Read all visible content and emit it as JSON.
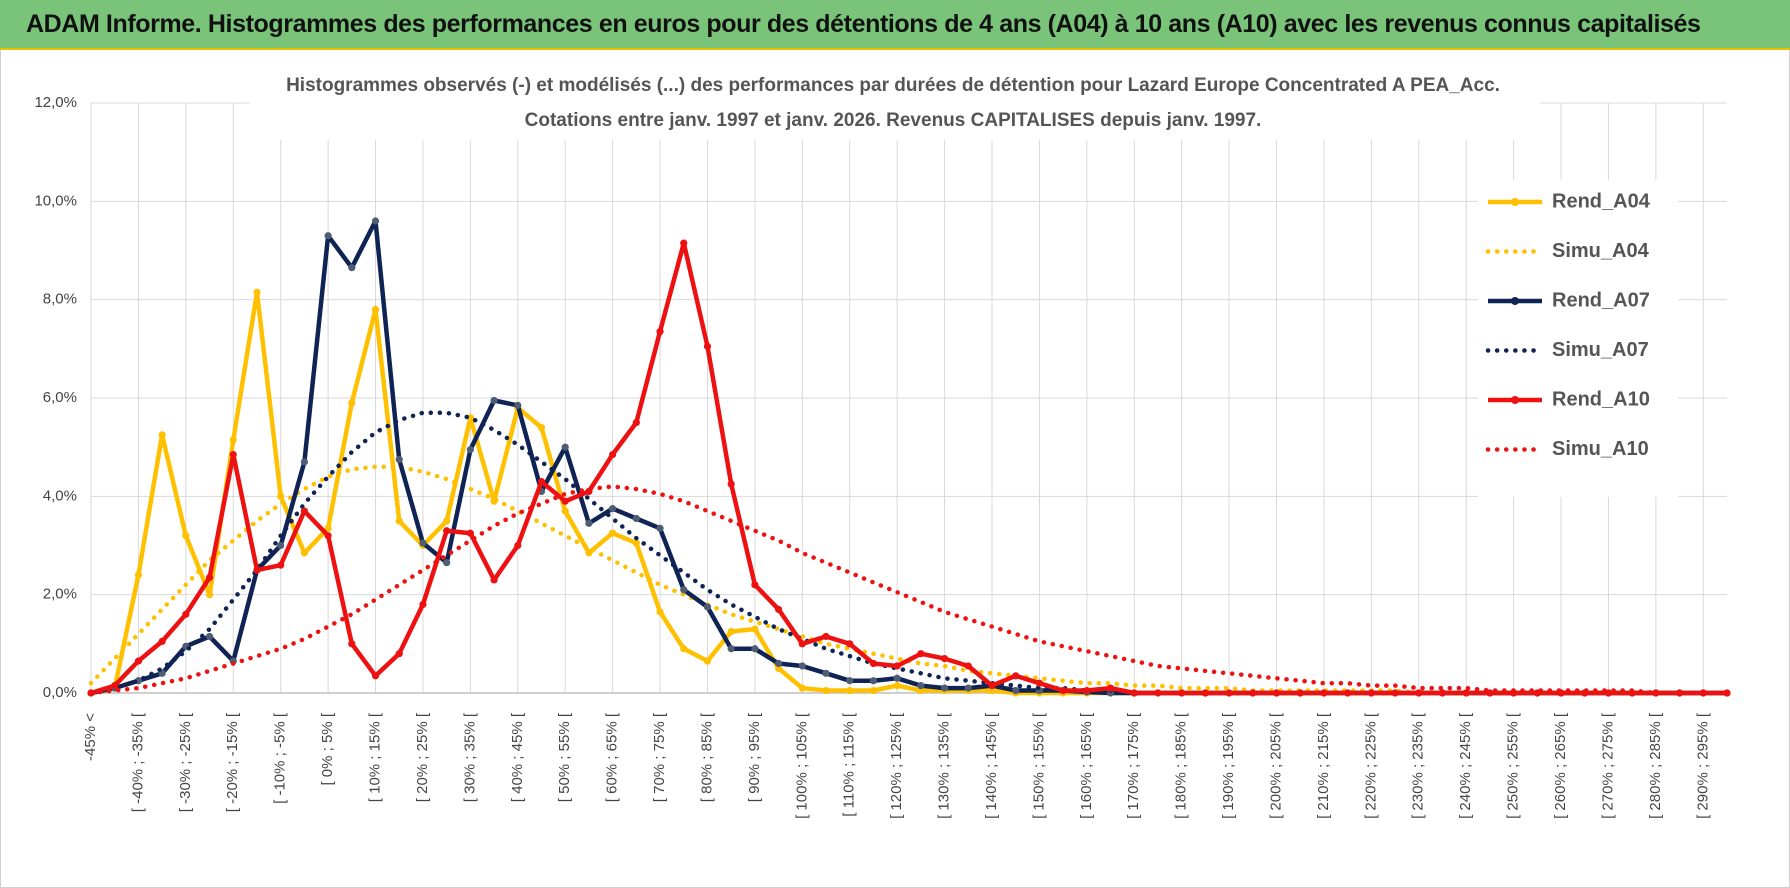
{
  "header": {
    "title": "ADAM Informe. Histogrammes des performances en euros pour des détentions de 4 ans (A04) à 10 ans (A10) avec les revenus connus capitalisés"
  },
  "chart_data": {
    "type": "line",
    "title": "Histogrammes observés (-) et modélisés (...) des performances par durées de détention pour Lazard Europe Concentrated A PEA_Acc.",
    "subtitle": "Cotations entre janv. 1997 et janv. 2026. Revenus CAPITALISES depuis janv. 1997.",
    "categories": [
      "-45% <",
      null,
      "[ -40% ; -35% [",
      null,
      "[ -30% ; -25% [",
      null,
      "[ -20% ; -15% [",
      null,
      "[ -10% ; -5% [",
      null,
      "[ 0% ; 5% [",
      null,
      "[ 10% ; 15% [",
      null,
      "[ 20% ; 25% [",
      null,
      "[ 30% ; 35% [",
      null,
      "[ 40% ; 45% [",
      null,
      "[ 50% ; 55% [",
      null,
      "[ 60% ; 65% [",
      null,
      "[ 70% ; 75% [",
      null,
      "[ 80% ; 85% [",
      null,
      "[ 90% ; 95% [",
      null,
      "[ 100% ; 105% [",
      null,
      "[ 110% ; 115% [",
      null,
      "[ 120% ; 125% [",
      null,
      "[ 130% ; 135% [",
      null,
      "[ 140% ; 145% [",
      null,
      "[ 150% ; 155% [",
      null,
      "[ 160% ; 165% [",
      null,
      "[ 170% ; 175% [",
      null,
      "[ 180% ; 185% [",
      null,
      "[ 190% ; 195% [",
      null,
      "[ 200% ; 205% [",
      null,
      "[ 210% ; 215% [",
      null,
      "[ 220% ; 225% [",
      null,
      "[ 230% ; 235% [",
      null,
      "[ 240% ; 245% [",
      null,
      "[ 250% ; 255% [",
      null,
      "[ 260% ; 265% [",
      null,
      "[ 270% ; 275% [",
      null,
      "[ 280% ; 285% [",
      null,
      "[ 290% ; 295% [",
      null
    ],
    "ylim": [
      0,
      12
    ],
    "yticks": [
      {
        "value": 0,
        "label": "0,0%"
      },
      {
        "value": 2,
        "label": "2,0%"
      },
      {
        "value": 4,
        "label": "4,0%"
      },
      {
        "value": 6,
        "label": "6,0%"
      },
      {
        "value": 8,
        "label": "8,0%"
      },
      {
        "value": 10,
        "label": "10,0%"
      },
      {
        "value": 12,
        "label": "12,0%"
      }
    ],
    "grid": true,
    "legend": "right",
    "series": [
      {
        "name": "Rend_A04",
        "color": "#ffc000",
        "line_style": "solid",
        "markers": true,
        "values": [
          0,
          0.1,
          2.4,
          5.25,
          3.2,
          2.0,
          5.15,
          8.15,
          4.0,
          2.85,
          3.35,
          5.9,
          7.8,
          3.5,
          3.0,
          3.5,
          5.6,
          3.9,
          5.8,
          5.4,
          3.7,
          2.85,
          3.25,
          3.05,
          1.65,
          0.9,
          0.65,
          1.25,
          1.3,
          0.5,
          0.1,
          0.05,
          0.05,
          0.05,
          0.15,
          0.05,
          0.05,
          0.05,
          0.05,
          0,
          0,
          0,
          0,
          0,
          0,
          0,
          0,
          0,
          0,
          0,
          0,
          0,
          0,
          0,
          0,
          0,
          0,
          0,
          0,
          0,
          0,
          0,
          0,
          0,
          0,
          0,
          0,
          0,
          0,
          0
        ]
      },
      {
        "name": "Simu_A04",
        "color": "#ffc000",
        "line_style": "dotted",
        "markers": false,
        "values": [
          0.2,
          0.7,
          1.2,
          1.7,
          2.2,
          2.7,
          3.1,
          3.5,
          3.85,
          4.15,
          4.4,
          4.55,
          4.6,
          4.6,
          4.5,
          4.35,
          4.15,
          3.95,
          3.7,
          3.45,
          3.2,
          2.95,
          2.7,
          2.45,
          2.2,
          2.0,
          1.8,
          1.6,
          1.45,
          1.3,
          1.15,
          1.0,
          0.9,
          0.8,
          0.7,
          0.6,
          0.55,
          0.45,
          0.4,
          0.35,
          0.3,
          0.25,
          0.2,
          0.2,
          0.15,
          0.15,
          0.1,
          0.1,
          0.1,
          0.05,
          0.05,
          0.05,
          0.05,
          0.05,
          0.05,
          0.05,
          0,
          0,
          0,
          0,
          0,
          0,
          0,
          0,
          0,
          0,
          0,
          0,
          0,
          0
        ]
      },
      {
        "name": "Rend_A07",
        "color": "#0f2454",
        "line_style": "solid",
        "markers": true,
        "values": [
          0,
          0.1,
          0.25,
          0.4,
          0.95,
          1.15,
          0.65,
          2.5,
          3.0,
          4.7,
          9.3,
          8.65,
          9.6,
          4.75,
          3.05,
          2.65,
          4.95,
          5.95,
          5.85,
          4.1,
          5.0,
          3.45,
          3.75,
          3.55,
          3.35,
          2.1,
          1.75,
          0.9,
          0.9,
          0.6,
          0.55,
          0.4,
          0.25,
          0.25,
          0.3,
          0.15,
          0.1,
          0.1,
          0.15,
          0.05,
          0.05,
          0.05,
          0.02,
          0,
          0,
          0,
          0,
          0,
          0,
          0,
          0,
          0,
          0,
          0,
          0,
          0,
          0,
          0,
          0,
          0,
          0,
          0,
          0,
          0,
          0,
          0,
          0,
          0,
          0,
          0
        ]
      },
      {
        "name": "Simu_A07",
        "color": "#0f2454",
        "line_style": "dotted",
        "markers": false,
        "values": [
          0,
          0.1,
          0.25,
          0.5,
          0.85,
          1.3,
          1.9,
          2.5,
          3.2,
          3.85,
          4.4,
          4.9,
          5.3,
          5.55,
          5.7,
          5.7,
          5.6,
          5.35,
          5.05,
          4.7,
          4.35,
          3.95,
          3.55,
          3.15,
          2.8,
          2.45,
          2.1,
          1.8,
          1.55,
          1.3,
          1.1,
          0.9,
          0.75,
          0.6,
          0.5,
          0.4,
          0.3,
          0.25,
          0.2,
          0.15,
          0.1,
          0.1,
          0.05,
          0.05,
          0,
          0,
          0,
          0,
          0,
          0,
          0,
          0,
          0,
          0,
          0,
          0,
          0,
          0,
          0,
          0,
          0,
          0,
          0,
          0,
          0,
          0,
          0,
          0,
          0,
          0
        ]
      },
      {
        "name": "Rend_A10",
        "color": "#ee1111",
        "line_style": "solid",
        "markers": true,
        "values": [
          0,
          0.15,
          0.65,
          1.05,
          1.6,
          2.35,
          4.85,
          2.5,
          2.6,
          3.7,
          3.2,
          1.0,
          0.35,
          0.8,
          1.8,
          3.3,
          3.25,
          2.3,
          3.0,
          4.3,
          3.9,
          4.1,
          4.85,
          5.5,
          7.35,
          9.15,
          7.05,
          4.25,
          2.2,
          1.7,
          1.0,
          1.15,
          1.0,
          0.6,
          0.55,
          0.8,
          0.7,
          0.55,
          0.15,
          0.35,
          0.2,
          0.05,
          0.05,
          0.1,
          0,
          0,
          0,
          0,
          0,
          0,
          0,
          0,
          0,
          0,
          0,
          0,
          0,
          0,
          0,
          0,
          0,
          0,
          0,
          0,
          0,
          0,
          0,
          0,
          0,
          0
        ]
      },
      {
        "name": "Simu_A10",
        "color": "#ee1111",
        "line_style": "dotted",
        "markers": false,
        "values": [
          0,
          0.05,
          0.1,
          0.2,
          0.3,
          0.45,
          0.6,
          0.75,
          0.9,
          1.1,
          1.35,
          1.6,
          1.9,
          2.2,
          2.5,
          2.8,
          3.1,
          3.4,
          3.65,
          3.85,
          4.05,
          4.15,
          4.2,
          4.15,
          4.05,
          3.9,
          3.7,
          3.5,
          3.3,
          3.1,
          2.85,
          2.65,
          2.45,
          2.25,
          2.05,
          1.85,
          1.65,
          1.5,
          1.35,
          1.2,
          1.05,
          0.95,
          0.85,
          0.75,
          0.65,
          0.55,
          0.5,
          0.45,
          0.4,
          0.35,
          0.3,
          0.25,
          0.2,
          0.2,
          0.15,
          0.15,
          0.1,
          0.1,
          0.1,
          0.05,
          0.05,
          0.05,
          0.05,
          0.05,
          0.05,
          0.05,
          0,
          0,
          0,
          0
        ]
      }
    ]
  }
}
